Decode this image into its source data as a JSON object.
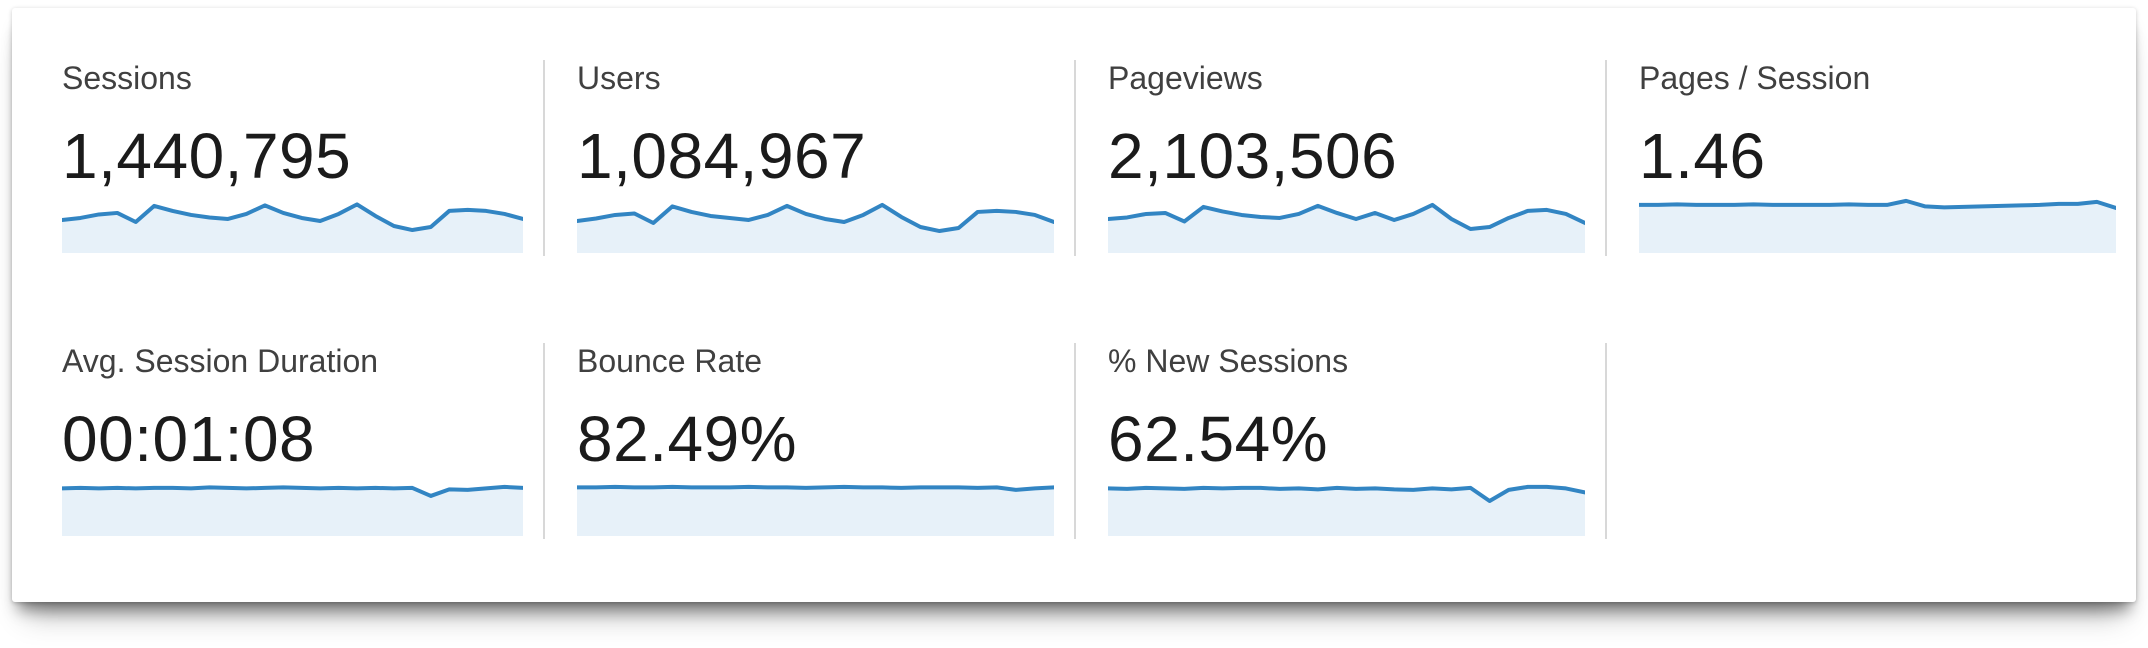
{
  "colors": {
    "sparkline_line": "#3285c3",
    "sparkline_fill": "#e7f1f9",
    "divider": "#d8d8d8",
    "label_text": "#404040",
    "value_text": "#1b1b1b",
    "panel_bg": "#ffffff"
  },
  "metrics": [
    {
      "id": "sessions",
      "label": "Sessions",
      "value": "1,440,795",
      "sparkline": [
        58,
        62,
        69,
        72,
        54,
        86,
        76,
        68,
        63,
        60,
        70,
        87,
        72,
        62,
        56,
        70,
        89,
        66,
        46,
        38,
        44,
        76,
        78,
        76,
        70,
        60
      ]
    },
    {
      "id": "users",
      "label": "Users",
      "value": "1,084,967",
      "sparkline": [
        56,
        61,
        68,
        71,
        52,
        85,
        74,
        66,
        62,
        58,
        68,
        86,
        70,
        60,
        54,
        68,
        88,
        64,
        44,
        36,
        42,
        74,
        76,
        74,
        68,
        54
      ]
    },
    {
      "id": "pageviews",
      "label": "Pageviews",
      "value": "2,103,506",
      "sparkline": [
        60,
        63,
        70,
        72,
        55,
        84,
        75,
        68,
        64,
        62,
        70,
        86,
        72,
        60,
        72,
        58,
        70,
        88,
        60,
        40,
        44,
        62,
        76,
        78,
        70,
        52
      ]
    },
    {
      "id": "pages-per-session",
      "label": "Pages / Session",
      "value": "1.46",
      "sparkline": [
        88,
        88,
        89,
        88,
        88,
        88,
        89,
        88,
        88,
        88,
        88,
        89,
        88,
        88,
        96,
        85,
        83,
        84,
        85,
        86,
        87,
        88,
        90,
        90,
        94,
        82
      ]
    },
    {
      "id": "avg-session-duration",
      "label": "Avg. Session Duration",
      "value": "00:01:08",
      "sparkline": [
        87,
        88,
        87,
        88,
        87,
        88,
        88,
        87,
        89,
        88,
        87,
        88,
        89,
        88,
        87,
        88,
        87,
        88,
        87,
        88,
        72,
        85,
        84,
        87,
        90,
        88
      ]
    },
    {
      "id": "bounce-rate",
      "label": "Bounce Rate",
      "value": "82.49%",
      "sparkline": [
        89,
        89,
        90,
        89,
        89,
        90,
        89,
        89,
        89,
        90,
        89,
        89,
        88,
        89,
        90,
        89,
        89,
        88,
        89,
        89,
        89,
        88,
        89,
        84,
        87,
        89
      ]
    },
    {
      "id": "new-sessions",
      "label": "% New Sessions",
      "value": "62.54%",
      "sparkline": [
        87,
        86,
        88,
        87,
        86,
        88,
        87,
        88,
        88,
        86,
        87,
        85,
        88,
        86,
        87,
        85,
        84,
        87,
        85,
        88,
        62,
        84,
        90,
        90,
        87,
        79
      ]
    }
  ]
}
